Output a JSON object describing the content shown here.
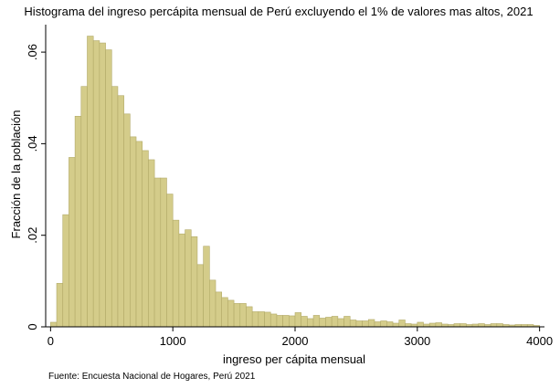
{
  "chart_data": {
    "type": "bar",
    "title": "Histograma del ingreso percápita mensual de Perú excluyendo el 1% de valores mas altos, 2021",
    "xlabel": "ingreso per cápita mensual",
    "ylabel": "Fracción de la población",
    "note": "Fuente: Encuesta Nacional de Hogares, Perú 2021",
    "xlim": [
      -40,
      4040
    ],
    "ylim": [
      0,
      0.066
    ],
    "xticks": [
      0,
      1000,
      2000,
      3000,
      4000
    ],
    "yticks": [
      0,
      0.02,
      0.04,
      0.06
    ],
    "ytick_labels": [
      "0",
      ".02",
      ".04",
      ".06"
    ],
    "grid": false,
    "bar_color": "#d4cc8a",
    "bar_edge_color": "#b2aa68",
    "bin_width": 50,
    "bin_starts": [
      0,
      50,
      100,
      150,
      200,
      250,
      300,
      350,
      400,
      450,
      500,
      550,
      600,
      650,
      700,
      750,
      800,
      850,
      900,
      950,
      1000,
      1050,
      1100,
      1150,
      1200,
      1250,
      1300,
      1350,
      1400,
      1450,
      1500,
      1550,
      1600,
      1650,
      1700,
      1750,
      1800,
      1850,
      1900,
      1950,
      2000,
      2050,
      2100,
      2150,
      2200,
      2250,
      2300,
      2350,
      2400,
      2450,
      2500,
      2550,
      2600,
      2650,
      2700,
      2750,
      2800,
      2850,
      2900,
      2950,
      3000,
      3050,
      3100,
      3150,
      3200,
      3250,
      3300,
      3350,
      3400,
      3450,
      3500,
      3550,
      3600,
      3650,
      3700,
      3750,
      3800,
      3850,
      3900,
      3950
    ],
    "values": [
      0.001,
      0.0095,
      0.0245,
      0.037,
      0.046,
      0.0525,
      0.0635,
      0.0625,
      0.062,
      0.0605,
      0.0525,
      0.0505,
      0.0465,
      0.0415,
      0.0405,
      0.0385,
      0.0365,
      0.0325,
      0.0325,
      0.029,
      0.0233,
      0.0203,
      0.0212,
      0.0197,
      0.0136,
      0.0176,
      0.0102,
      0.0076,
      0.0064,
      0.0058,
      0.0051,
      0.0051,
      0.0044,
      0.0033,
      0.0033,
      0.0032,
      0.0028,
      0.0025,
      0.0025,
      0.0024,
      0.0031,
      0.0023,
      0.0018,
      0.0025,
      0.0019,
      0.0021,
      0.0023,
      0.0018,
      0.0023,
      0.0015,
      0.0013,
      0.0013,
      0.0016,
      0.0011,
      0.0013,
      0.0011,
      0.0008,
      0.0015,
      0.0007,
      0.0006,
      0.001,
      0.0006,
      0.0008,
      0.0009,
      0.0006,
      0.0005,
      0.0007,
      0.0007,
      0.0005,
      0.0006,
      0.0007,
      0.0005,
      0.0007,
      0.0007,
      0.0005,
      0.0004,
      0.0005,
      0.0005,
      0.0005,
      0.0003
    ]
  }
}
